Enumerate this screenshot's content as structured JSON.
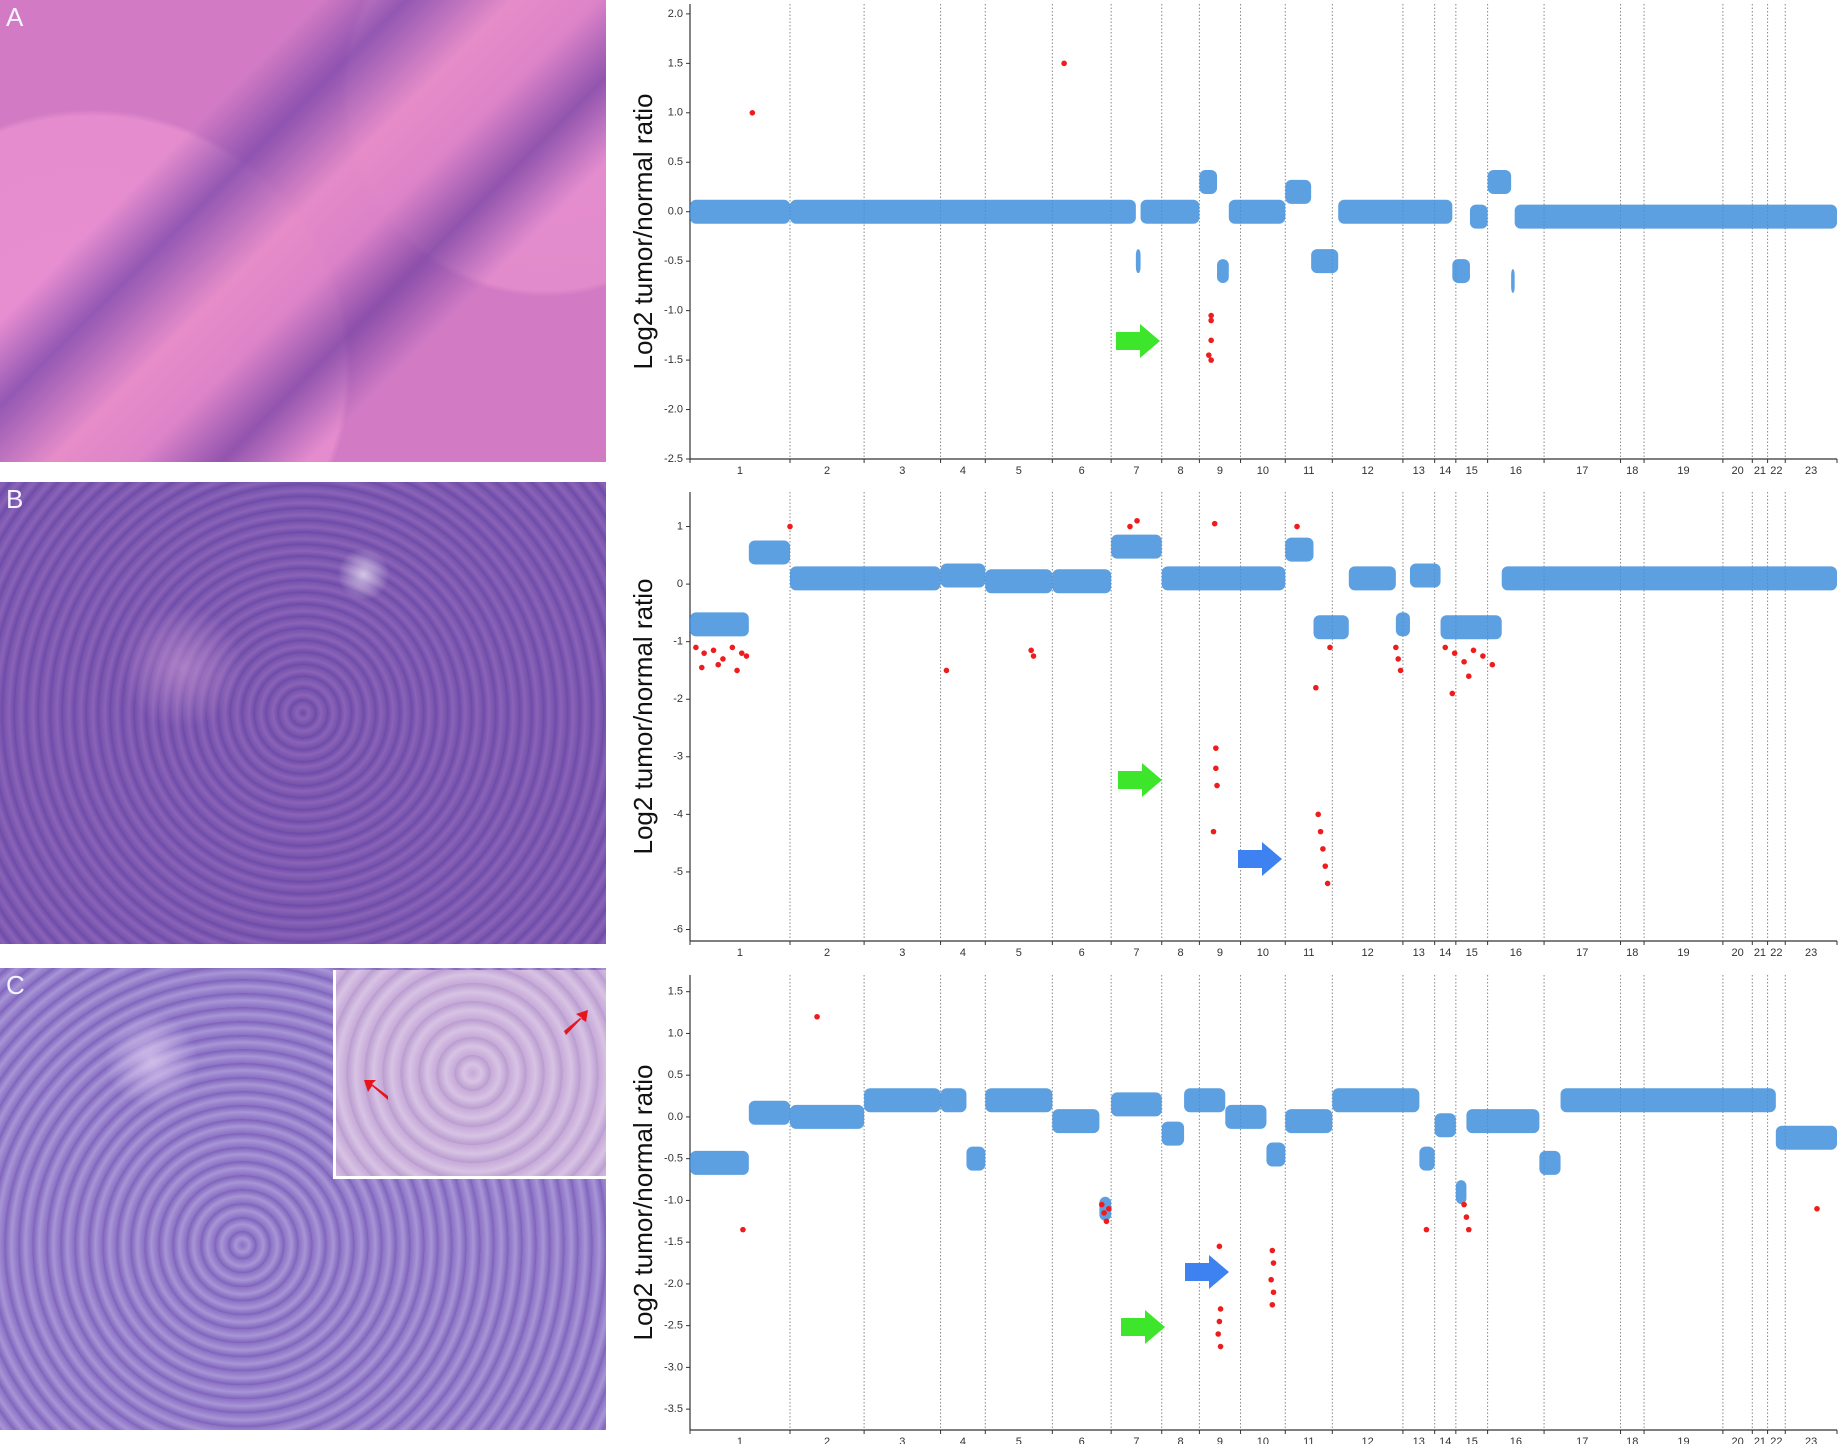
{
  "chart_data": [
    {
      "type": "scatter",
      "panel_label": "A",
      "y_label": "Log2 tumor/normal ratio",
      "ylim": [
        -2.5,
        2.1
      ],
      "yticks": [
        {
          "value": 2,
          "label": "2.0"
        },
        1.5,
        {
          "value": 1,
          "label": "1.0"
        },
        0.5,
        {
          "value": 0,
          "label": "0.0"
        },
        -0.5,
        {
          "value": -1,
          "label": "-1.0"
        },
        -1.5,
        {
          "value": -2,
          "label": "-2.0"
        },
        -2.5
      ],
      "xlim": [
        0,
        975
      ],
      "chromosomes": [
        "1",
        "2",
        "3",
        "4",
        "5",
        "6",
        "7",
        "8",
        "9",
        "10",
        "11",
        "12",
        "13",
        "14",
        "15",
        "16",
        "17",
        "18",
        "19",
        "20",
        "21",
        "22",
        "23"
      ],
      "chromosome_bounds": [
        0,
        85,
        148,
        213,
        251,
        308,
        358,
        401,
        433,
        468,
        506,
        546,
        606,
        633,
        651,
        678,
        726,
        791,
        811,
        878,
        903,
        916,
        931,
        975
      ],
      "color": "#3f8fdc",
      "outlier_color": "#ee1c1c",
      "segments": {
        "x_start": [
          0,
          85,
          379,
          383,
          433,
          448,
          458,
          506,
          528,
          551,
          648,
          663,
          678,
          698,
          701
        ],
        "x_end": [
          85,
          379,
          383,
          433,
          448,
          458,
          506,
          528,
          551,
          648,
          663,
          678,
          698,
          701,
          975
        ],
        "values": [
          0,
          0,
          -0.5,
          0,
          0.3,
          -0.6,
          0,
          0.2,
          -0.5,
          0,
          -0.6,
          -0.05,
          0.3,
          -0.7,
          -0.05
        ]
      },
      "outliers": {
        "x": [
          53,
          318,
          443,
          443,
          443,
          441,
          443
        ],
        "y": [
          1.0,
          1.5,
          -1.05,
          -1.1,
          -1.3,
          -1.45,
          -1.5
        ]
      }
    },
    {
      "type": "scatter",
      "panel_label": "B",
      "y_label": "Log2 tumor/normal ratio",
      "ylim": [
        -6.2,
        1.6
      ],
      "yticks": [
        1,
        0,
        -1,
        -2,
        -3,
        -4,
        -5,
        -6
      ],
      "xlim": [
        0,
        975
      ],
      "chromosomes": [
        "1",
        "2",
        "3",
        "4",
        "5",
        "6",
        "7",
        "8",
        "9",
        "10",
        "11",
        "12",
        "13",
        "14",
        "15",
        "16",
        "17",
        "18",
        "19",
        "20",
        "21",
        "22",
        "23"
      ],
      "chromosome_bounds": [
        0,
        85,
        148,
        213,
        251,
        308,
        358,
        401,
        433,
        468,
        506,
        546,
        606,
        633,
        651,
        678,
        726,
        791,
        811,
        878,
        903,
        916,
        931,
        975
      ],
      "color": "#3f8fdc",
      "outlier_color": "#ee1c1c",
      "segments": {
        "x_start": [
          0,
          50,
          85,
          213,
          251,
          308,
          358,
          401,
          506,
          530,
          560,
          600,
          612,
          638,
          690
        ],
        "x_end": [
          50,
          85,
          213,
          251,
          308,
          358,
          401,
          506,
          530,
          560,
          600,
          612,
          638,
          690,
          975
        ],
        "values": [
          -0.7,
          0.55,
          0.1,
          0.15,
          0.05,
          0.05,
          0.65,
          0.1,
          0.6,
          -0.75,
          0.1,
          -0.7,
          0.15,
          -0.75,
          0.1
        ]
      },
      "outliers": {
        "x": [
          5,
          12,
          20,
          28,
          36,
          44,
          10,
          24,
          40,
          48,
          85,
          218,
          290,
          292,
          374,
          380,
          446,
          447,
          447,
          448,
          445,
          516,
          532,
          534,
          536,
          538,
          540,
          542,
          544,
          600,
          602,
          604,
          642,
          650,
          658,
          666,
          674,
          682,
          648,
          662
        ],
        "y": [
          -1.1,
          -1.2,
          -1.15,
          -1.3,
          -1.1,
          -1.2,
          -1.45,
          -1.4,
          -1.5,
          -1.25,
          1.0,
          -1.5,
          -1.15,
          -1.25,
          1.0,
          1.1,
          1.05,
          -2.85,
          -3.2,
          -3.5,
          -4.3,
          1.0,
          -1.8,
          -4.0,
          -4.3,
          -4.6,
          -4.9,
          -5.2,
          -1.1,
          -1.1,
          -1.3,
          -1.5,
          -1.1,
          -1.2,
          -1.35,
          -1.15,
          -1.25,
          -1.4,
          -1.9,
          -1.6
        ]
      }
    },
    {
      "type": "scatter",
      "panel_label": "C",
      "y_label": "Log2 tumor/normal ratio",
      "ylim": [
        -3.75,
        1.7
      ],
      "yticks": [
        1.5,
        {
          "value": 1,
          "label": "1.0"
        },
        0.5,
        {
          "value": 0,
          "label": "0.0"
        },
        -0.5,
        {
          "value": -1,
          "label": "-1.0"
        },
        -1.5,
        {
          "value": -2,
          "label": "-2.0"
        },
        -2.5,
        {
          "value": -3,
          "label": "-3.0"
        },
        -3.5
      ],
      "xlim": [
        0,
        975
      ],
      "chromosomes": [
        "1",
        "2",
        "3",
        "4",
        "5",
        "6",
        "7",
        "8",
        "9",
        "10",
        "11",
        "12",
        "13",
        "14",
        "15",
        "16",
        "17",
        "18",
        "19",
        "20",
        "21",
        "22",
        "23"
      ],
      "chromosome_bounds": [
        0,
        85,
        148,
        213,
        251,
        308,
        358,
        401,
        433,
        468,
        506,
        546,
        606,
        633,
        651,
        678,
        726,
        791,
        811,
        878,
        903,
        916,
        931,
        975
      ],
      "color": "#3f8fdc",
      "outlier_color": "#ee1c1c",
      "segments": {
        "x_start": [
          0,
          50,
          85,
          148,
          213,
          235,
          251,
          308,
          348,
          358,
          401,
          420,
          455,
          490,
          506,
          546,
          620,
          633,
          651,
          660,
          722,
          740,
          923
        ],
        "x_end": [
          50,
          85,
          148,
          213,
          235,
          251,
          308,
          348,
          358,
          401,
          420,
          455,
          490,
          506,
          546,
          620,
          633,
          651,
          660,
          722,
          740,
          923,
          975
        ],
        "values": [
          -0.55,
          0.05,
          0,
          0.2,
          0.2,
          -0.5,
          0.2,
          -0.05,
          -1.1,
          0.15,
          -0.2,
          0.2,
          0,
          -0.45,
          -0.05,
          0.2,
          -0.5,
          -0.1,
          -0.9,
          -0.05,
          -0.55,
          0.2,
          -0.25
        ]
      },
      "outliers": {
        "x": [
          45,
          108,
          350,
          352,
          354,
          356,
          450,
          451,
          450,
          449,
          451,
          495,
          496,
          494,
          496,
          495,
          626,
          658,
          660,
          662,
          958
        ],
        "y": [
          -1.35,
          1.2,
          -1.05,
          -1.15,
          -1.25,
          -1.1,
          -1.55,
          -2.3,
          -2.45,
          -2.6,
          -2.75,
          -1.6,
          -1.75,
          -1.95,
          -2.1,
          -2.25,
          -1.35,
          -1.05,
          -1.2,
          -1.35,
          -1.1
        ]
      }
    }
  ]
}
